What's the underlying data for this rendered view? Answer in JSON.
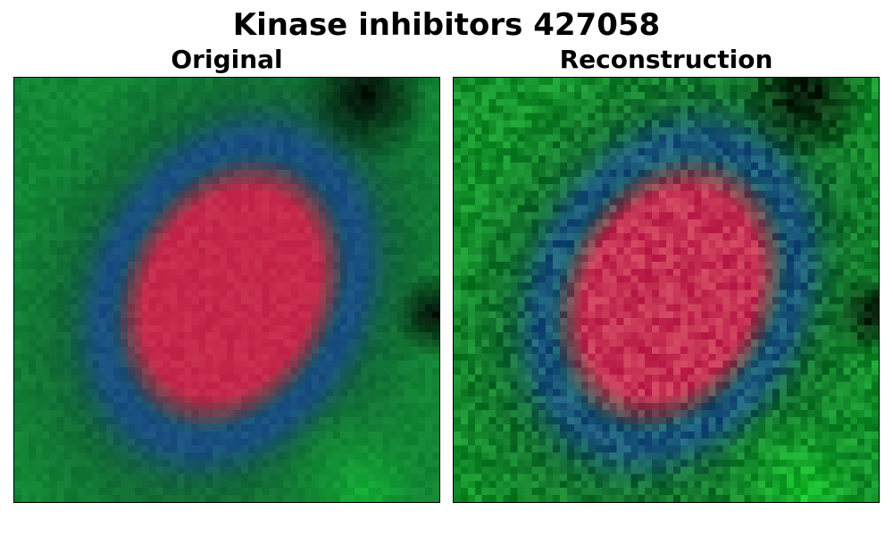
{
  "figure": {
    "title": "Kinase inhibitors 427058"
  },
  "panels": [
    {
      "title": "Original",
      "image_kind": "original",
      "colors": {
        "background": "#0f3a32",
        "green": "#15d838",
        "blue": "#1f47b5",
        "red": "#e62050",
        "dark": "#050505"
      }
    },
    {
      "title": "Reconstruction",
      "image_kind": "reconstruction",
      "colors": {
        "background": "#0f3a2e",
        "green": "#18f028",
        "blue": "#1f4fb0",
        "red": "#e6285a",
        "dark": "#050505"
      }
    }
  ]
}
